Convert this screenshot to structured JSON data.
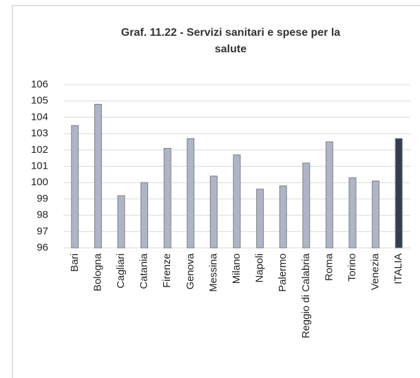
{
  "chart_data": {
    "type": "bar",
    "title": "Graf. 11.22 - Servizi sanitari e spese per la salute",
    "categories": [
      "Bari",
      "Bologna",
      "Cagliari",
      "Catania",
      "Firenze",
      "Genova",
      "Messina",
      "Milano",
      "Napoli",
      "Palermo",
      "Reggio di Calabria",
      "Roma",
      "Torino",
      "Venezia",
      "ITALIA"
    ],
    "values": [
      103.5,
      104.8,
      99.2,
      100.0,
      102.1,
      102.7,
      100.4,
      101.7,
      99.6,
      99.8,
      101.2,
      102.5,
      100.3,
      100.1,
      102.7
    ],
    "colors": [
      "#adb5c7",
      "#adb5c7",
      "#adb5c7",
      "#adb5c7",
      "#adb5c7",
      "#adb5c7",
      "#adb5c7",
      "#adb5c7",
      "#adb5c7",
      "#adb5c7",
      "#adb5c7",
      "#adb5c7",
      "#adb5c7",
      "#adb5c7",
      "#333f50"
    ],
    "ylim": [
      96,
      106
    ],
    "yticks": [
      96,
      97,
      98,
      99,
      100,
      101,
      102,
      103,
      104,
      105,
      106
    ],
    "grid": true
  }
}
